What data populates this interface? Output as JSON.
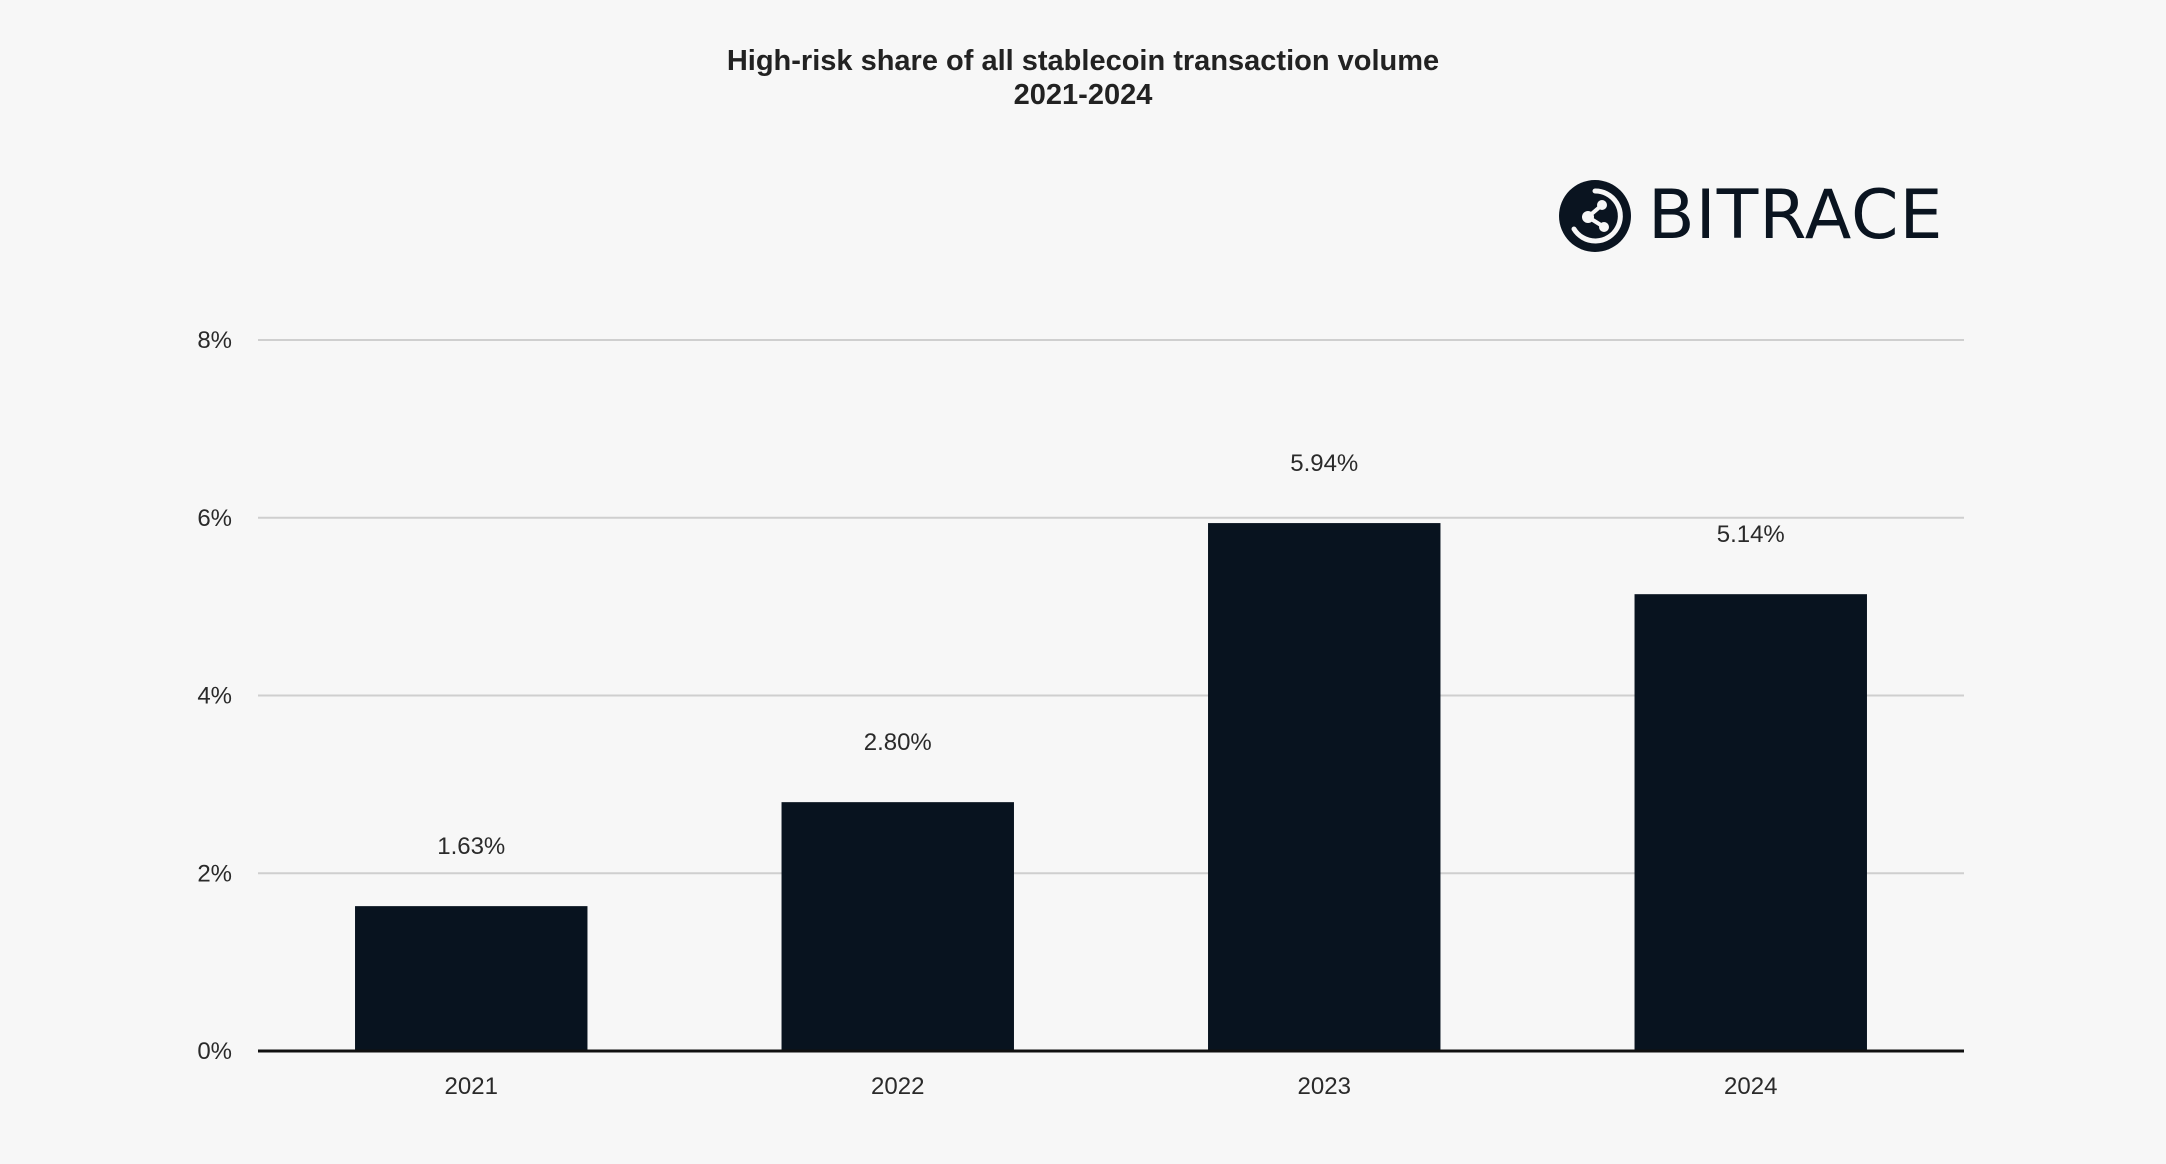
{
  "chart_data": {
    "type": "bar",
    "title": "High-risk share of all stablecoin transaction volume",
    "subtitle": "2021-2024",
    "categories": [
      "2021",
      "2022",
      "2023",
      "2024"
    ],
    "values": [
      1.63,
      2.8,
      5.94,
      5.14
    ],
    "value_labels": [
      "1.63%",
      "2.80%",
      "5.94%",
      "5.14%"
    ],
    "y_ticks": [
      0,
      2,
      4,
      6,
      8
    ],
    "y_tick_labels": [
      "0%",
      "2%",
      "4%",
      "6%",
      "8%"
    ],
    "ylim": [
      0,
      8
    ],
    "grid": true,
    "legend": "none",
    "bar_color": "#08131f",
    "grid_color": "#cfcfcf",
    "axis_color": "#111111"
  },
  "logo": {
    "text": "BITRACE",
    "icon": "bitrace-logo-icon",
    "color": "#0a1420"
  }
}
